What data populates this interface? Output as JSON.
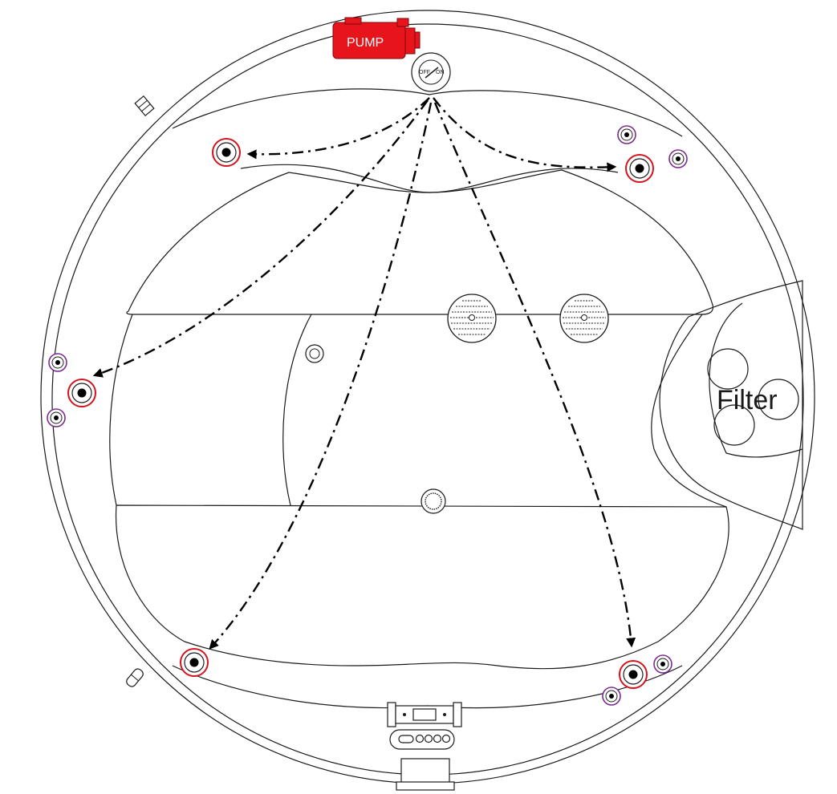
{
  "labels": {
    "pump": "PUMP",
    "switch_off": "OFF",
    "switch_on": "ON",
    "filter": "Filter"
  },
  "colors": {
    "pump": "#e8141b",
    "jet_ring": "#d4141c",
    "air_ring": "#7a2c8c",
    "outline": "#1a1a1a"
  },
  "icons": [
    "pump-icon",
    "air-switch-icon",
    "jet-icon",
    "air-nozzle-icon",
    "suction-grate-icon",
    "control-panel-icon",
    "skimmer-icon",
    "filter-cartridge-icon"
  ]
}
